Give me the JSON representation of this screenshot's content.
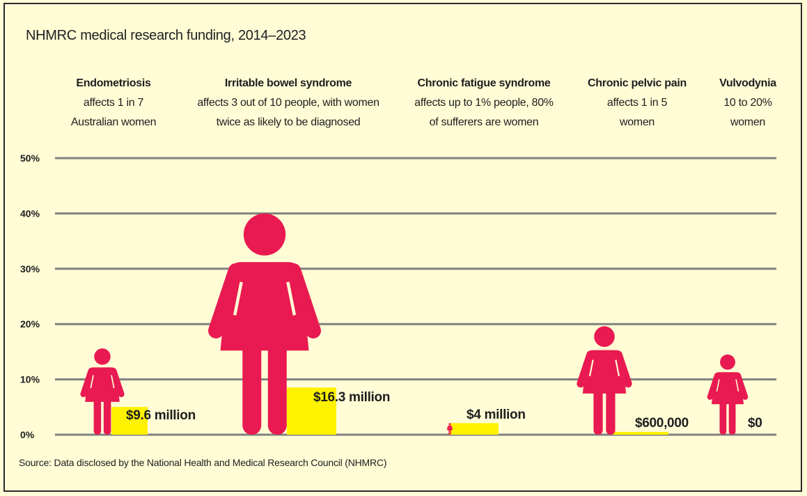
{
  "title": "NHMRC medical research funding, 2014–2023",
  "source": "Source: Data disclosed by the National Health and Medical Research Council (NHMRC)",
  "colors": {
    "background": "#fffcd6",
    "figure": "#e91a51",
    "funding_bar": "#fff200",
    "grid": "#808080"
  },
  "chart_data": {
    "type": "bar",
    "title": "NHMRC medical research funding, 2014–2023",
    "ylim": [
      0,
      50
    ],
    "y_ticks": [
      "0%",
      "10%",
      "20%",
      "30%",
      "40%",
      "50%"
    ],
    "grid": true,
    "categories": [
      {
        "name": "Endometriosis",
        "desc": [
          "affects 1 in 7",
          "Australian women"
        ],
        "prevalence_pct": 15.6,
        "funding_millions": 9.6,
        "funding_label": "$9.6 million"
      },
      {
        "name": "Irritable bowel syndrome",
        "desc": [
          "affects 3 out of 10 people, with women",
          "twice as likely to be diagnosed"
        ],
        "prevalence_pct": 40,
        "funding_millions": 16.3,
        "funding_label": "$16.3 million"
      },
      {
        "name": "Chronic fatigue syndrome",
        "desc": [
          "affects up to 1% people, 80%",
          "of sufferers are women"
        ],
        "prevalence_pct": 2.1,
        "funding_millions": 4,
        "funding_label": "$4 million"
      },
      {
        "name": "Chronic pelvic pain",
        "desc": [
          "affects 1 in 5",
          "women"
        ],
        "prevalence_pct": 19.6,
        "funding_millions": 0.6,
        "funding_label": "$600,000"
      },
      {
        "name": "Vulvodynia",
        "desc": [
          "10 to 20%",
          "women"
        ],
        "prevalence_pct": 14.5,
        "funding_millions": 0,
        "funding_label": "$0"
      }
    ]
  }
}
